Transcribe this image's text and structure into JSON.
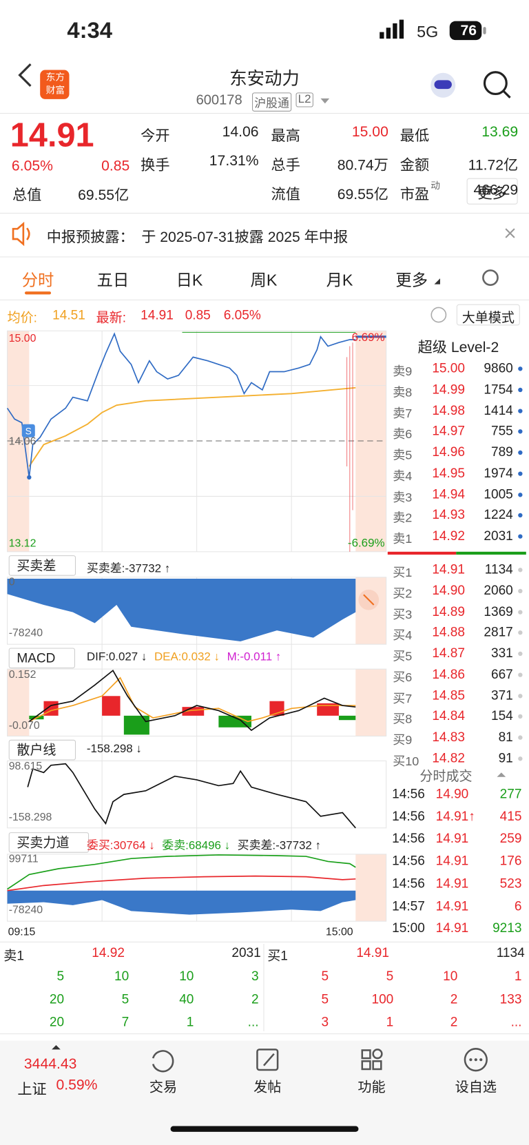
{
  "status": {
    "time": "4:34",
    "network": "5G",
    "battery": "76"
  },
  "header": {
    "logo": [
      "东方",
      "财富"
    ],
    "title": "东安动力",
    "code": "600178",
    "tags": [
      "沪股通",
      "L2"
    ]
  },
  "quote": {
    "price": "14.91",
    "pct": "6.05%",
    "change": "0.85",
    "stats": [
      {
        "label": "今开",
        "value": "14.06",
        "color": "k"
      },
      {
        "label": "最高",
        "value": "15.00",
        "color": "r"
      },
      {
        "label": "最低",
        "value": "13.69",
        "color": "g"
      },
      {
        "label": "换手",
        "value": "17.31%",
        "color": "k"
      },
      {
        "label": "总手",
        "value": "80.74万",
        "color": "k"
      },
      {
        "label": "金额",
        "value": "11.72亿",
        "color": "k"
      },
      {
        "label": "流值",
        "value": "69.55亿",
        "color": "k"
      },
      {
        "label": "市盈",
        "sup": "动",
        "value": "466.29",
        "color": "k"
      }
    ],
    "cap_label": "总值",
    "cap_value": "69.55亿",
    "more": "更多"
  },
  "notice": {
    "label": "中报预披露：",
    "text": "于 2025-07-31披露 2025 年中报"
  },
  "tabs": [
    "分时",
    "五日",
    "日K",
    "周K",
    "月K",
    "更多"
  ],
  "info": {
    "avg_label": "均价:",
    "avg": "14.51",
    "latest_label": "最新:",
    "latest": "14.91",
    "change": "0.85",
    "pct": "6.05%",
    "mode": "大单模式"
  },
  "chart": {
    "high": "15.00",
    "low": "13.12",
    "pct_high": "6.69%",
    "pct_low": "-6.69%",
    "prev": "14.06",
    "start": "09:15",
    "end": "15:00",
    "diff": {
      "selector": "买卖差",
      "text": "买卖差:-37732 ↑",
      "top": "0",
      "bottom": "-78240"
    },
    "macd": {
      "selector": "MACD",
      "dif": "DIF:0.027 ↓",
      "dea": "DEA:0.032 ↓",
      "m": "M:-0.011 ↑",
      "top": "0.152",
      "bottom": "-0.070"
    },
    "retail": {
      "selector": "散户线",
      "text": "-158.298 ↓",
      "top": "98.615",
      "bottom": "-158.298"
    },
    "force": {
      "selector": "买卖力道",
      "buy": "委买:30764 ↓",
      "sell": "委卖:68496 ↓",
      "diff": "买卖差:-37732 ↑",
      "top": "99711",
      "bottom": "-78240"
    }
  },
  "level2": {
    "title": "超级 Level-2",
    "asks": [
      {
        "label": "卖9",
        "price": "15.00",
        "volume": "9860"
      },
      {
        "label": "卖8",
        "price": "14.99",
        "volume": "1754"
      },
      {
        "label": "卖7",
        "price": "14.98",
        "volume": "1414"
      },
      {
        "label": "卖6",
        "price": "14.97",
        "volume": "755"
      },
      {
        "label": "卖5",
        "price": "14.96",
        "volume": "789"
      },
      {
        "label": "卖4",
        "price": "14.95",
        "volume": "1974"
      },
      {
        "label": "卖3",
        "price": "14.94",
        "volume": "1005"
      },
      {
        "label": "卖2",
        "price": "14.93",
        "volume": "1224"
      },
      {
        "label": "卖1",
        "price": "14.92",
        "volume": "2031"
      }
    ],
    "bids": [
      {
        "label": "买1",
        "price": "14.91",
        "volume": "1134"
      },
      {
        "label": "买2",
        "price": "14.90",
        "volume": "2060"
      },
      {
        "label": "买3",
        "price": "14.89",
        "volume": "1369"
      },
      {
        "label": "买4",
        "price": "14.88",
        "volume": "2817"
      },
      {
        "label": "买5",
        "price": "14.87",
        "volume": "331"
      },
      {
        "label": "买6",
        "price": "14.86",
        "volume": "667"
      },
      {
        "label": "买7",
        "price": "14.85",
        "volume": "371"
      },
      {
        "label": "买8",
        "price": "14.84",
        "volume": "154"
      },
      {
        "label": "买9",
        "price": "14.83",
        "volume": "81"
      },
      {
        "label": "买10",
        "price": "14.82",
        "volume": "91"
      }
    ]
  },
  "trades": {
    "title": "分时成交",
    "rows": [
      {
        "time": "14:56",
        "price": "14.90",
        "volume": "277",
        "color": "g"
      },
      {
        "time": "14:56",
        "price": "14.91↑",
        "volume": "415",
        "color": "r"
      },
      {
        "time": "14:56",
        "price": "14.91",
        "volume": "259",
        "color": "r"
      },
      {
        "time": "14:56",
        "price": "14.91",
        "volume": "176",
        "color": "r"
      },
      {
        "time": "14:56",
        "price": "14.91",
        "volume": "523",
        "color": "r"
      },
      {
        "time": "14:57",
        "price": "14.91",
        "volume": "6",
        "color": "r"
      },
      {
        "time": "15:00",
        "price": "14.91",
        "volume": "9213",
        "color": "g"
      }
    ]
  },
  "queue": {
    "ask_label": "卖1",
    "ask_price": "14.92",
    "ask_volume": "2031",
    "bid_label": "买1",
    "bid_price": "14.91",
    "bid_volume": "1134",
    "ask_rows": [
      [
        "5",
        "10",
        "10",
        "3"
      ],
      [
        "20",
        "5",
        "40",
        "2"
      ],
      [
        "20",
        "7",
        "1",
        "..."
      ]
    ],
    "bid_rows": [
      [
        "5",
        "5",
        "10",
        "1"
      ],
      [
        "5",
        "100",
        "2",
        "133"
      ],
      [
        "3",
        "1",
        "2",
        "..."
      ]
    ]
  },
  "footer": {
    "index": "3444.43",
    "index_name": "上证",
    "index_pct": "0.59%",
    "nav": [
      "交易",
      "发帖",
      "功能",
      "设自选"
    ]
  }
}
